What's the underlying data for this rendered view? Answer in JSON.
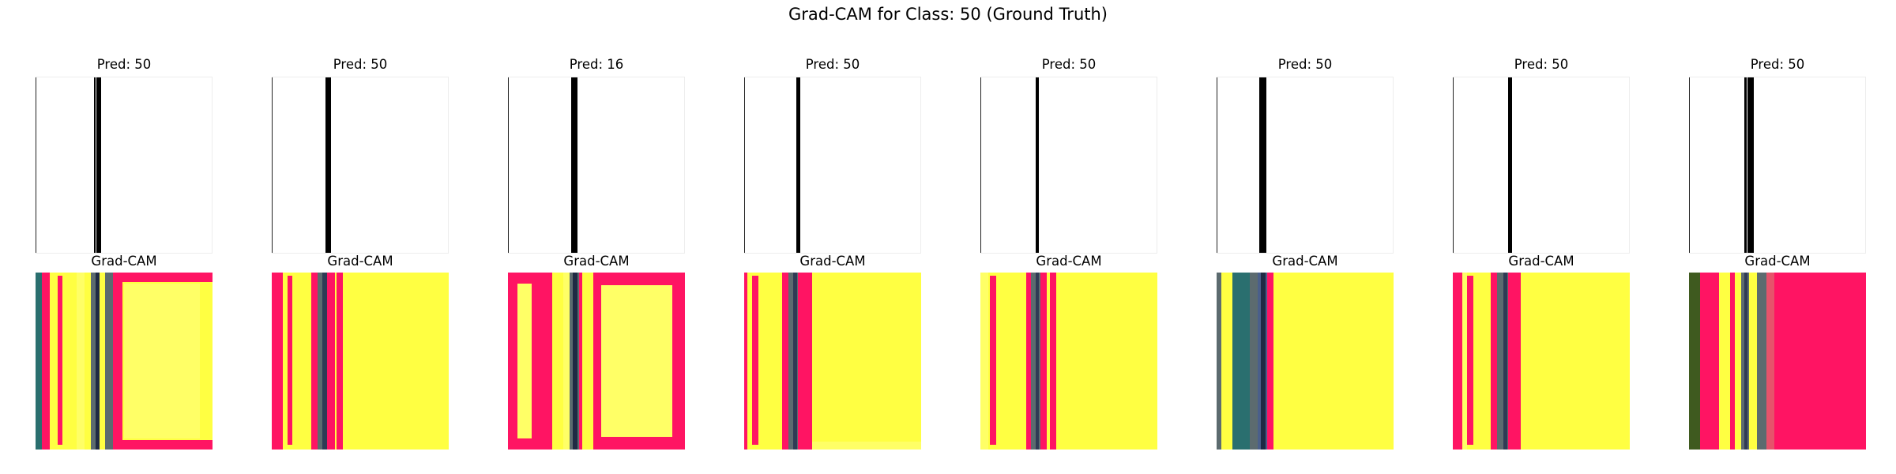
{
  "figure": {
    "title": "Grad-CAM for Class: 50 (Ground Truth)"
  },
  "panels": [
    {
      "pred_label": "Pred: 50",
      "cam_label": "Grad-CAM"
    },
    {
      "pred_label": "Pred: 50",
      "cam_label": "Grad-CAM"
    },
    {
      "pred_label": "Pred: 16",
      "cam_label": "Grad-CAM"
    },
    {
      "pred_label": "Pred: 50",
      "cam_label": "Grad-CAM"
    },
    {
      "pred_label": "Pred: 50",
      "cam_label": "Grad-CAM"
    },
    {
      "pred_label": "Pred: 50",
      "cam_label": "Grad-CAM"
    },
    {
      "pred_label": "Pred: 50",
      "cam_label": "Grad-CAM"
    },
    {
      "pred_label": "Pred: 50",
      "cam_label": "Grad-CAM"
    }
  ],
  "colors": {
    "heat_yellow": "#ffff42",
    "heat_yellow_light": "#ffff66",
    "heat_red": "#ff1463",
    "heat_green": "#3f5a1f",
    "heat_teal": "#2a6f6f",
    "heat_gray": "#5c6b6f",
    "signal_black": "#000000"
  }
}
